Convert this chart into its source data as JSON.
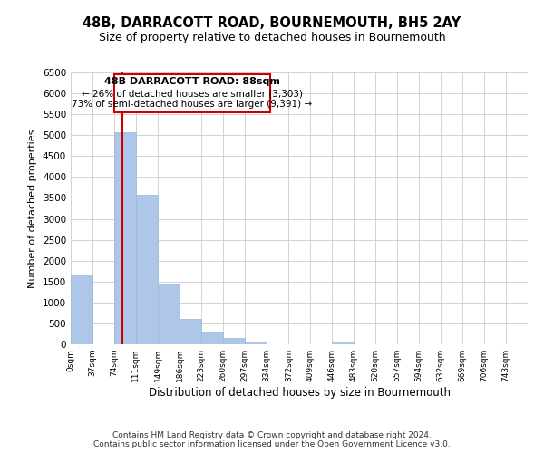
{
  "title": "48B, DARRACOTT ROAD, BOURNEMOUTH, BH5 2AY",
  "subtitle": "Size of property relative to detached houses in Bournemouth",
  "xlabel": "Distribution of detached houses by size in Bournemouth",
  "ylabel": "Number of detached properties",
  "bar_edges": [
    0,
    37,
    74,
    111,
    149,
    186,
    223,
    260,
    297,
    334,
    372,
    409,
    446,
    483,
    520,
    557,
    594,
    632,
    669,
    706,
    743
  ],
  "bar_heights": [
    1650,
    0,
    5080,
    3580,
    1430,
    610,
    305,
    155,
    50,
    0,
    0,
    0,
    50,
    0,
    0,
    0,
    0,
    0,
    0,
    0
  ],
  "bar_color": "#aec6e8",
  "bar_edge_color": "#9ab8d8",
  "property_line_x": 88,
  "property_line_color": "#cc0000",
  "ylim": [
    0,
    6500
  ],
  "yticks": [
    0,
    500,
    1000,
    1500,
    2000,
    2500,
    3000,
    3500,
    4000,
    4500,
    5000,
    5500,
    6000,
    6500
  ],
  "tick_labels": [
    "0sqm",
    "37sqm",
    "74sqm",
    "111sqm",
    "149sqm",
    "186sqm",
    "223sqm",
    "260sqm",
    "297sqm",
    "334sqm",
    "372sqm",
    "409sqm",
    "446sqm",
    "483sqm",
    "520sqm",
    "557sqm",
    "594sqm",
    "632sqm",
    "669sqm",
    "706sqm",
    "743sqm"
  ],
  "annotation_line1": "48B DARRACOTT ROAD: 88sqm",
  "annotation_line2": "← 26% of detached houses are smaller (3,303)",
  "annotation_line3": "73% of semi-detached houses are larger (9,391) →",
  "footnote_line1": "Contains HM Land Registry data © Crown copyright and database right 2024.",
  "footnote_line2": "Contains public sector information licensed under the Open Government Licence v3.0.",
  "background_color": "#ffffff",
  "grid_color": "#cccccc",
  "title_fontsize": 10.5,
  "subtitle_fontsize": 9,
  "xlabel_fontsize": 8.5,
  "ylabel_fontsize": 8,
  "tick_fontsize": 6.5,
  "ytick_fontsize": 7.5,
  "footnote_fontsize": 6.5,
  "annot_fontsize": 8
}
